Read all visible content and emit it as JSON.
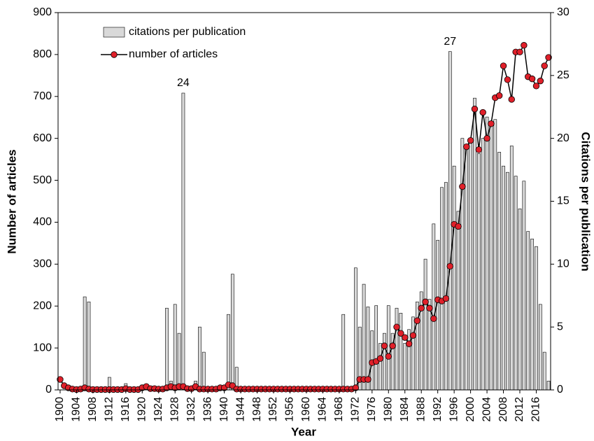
{
  "chart_data": {
    "type": "combo",
    "x_label": "Year",
    "y_label": "Number of articles",
    "y2_label": "Citations per publication",
    "x": [
      1900,
      1901,
      1902,
      1903,
      1904,
      1905,
      1906,
      1907,
      1908,
      1909,
      1910,
      1911,
      1912,
      1913,
      1914,
      1915,
      1916,
      1917,
      1918,
      1919,
      1920,
      1921,
      1922,
      1923,
      1924,
      1925,
      1926,
      1927,
      1928,
      1929,
      1930,
      1931,
      1932,
      1933,
      1934,
      1935,
      1936,
      1937,
      1938,
      1939,
      1940,
      1941,
      1942,
      1943,
      1944,
      1945,
      1946,
      1947,
      1948,
      1949,
      1950,
      1951,
      1952,
      1953,
      1954,
      1955,
      1956,
      1957,
      1958,
      1959,
      1960,
      1961,
      1962,
      1963,
      1964,
      1965,
      1966,
      1967,
      1968,
      1969,
      1970,
      1971,
      1972,
      1973,
      1974,
      1975,
      1976,
      1977,
      1978,
      1979,
      1980,
      1981,
      1982,
      1983,
      1984,
      1985,
      1986,
      1987,
      1988,
      1989,
      1990,
      1991,
      1992,
      1993,
      1994,
      1995,
      1996,
      1997,
      1998,
      1999,
      2000,
      2001,
      2002,
      2003,
      2004,
      2005,
      2006,
      2007,
      2008,
      2009,
      2010,
      2011,
      2012,
      2013,
      2014,
      2015,
      2016,
      2017,
      2018,
      2019
    ],
    "xlim": [
      1899.5,
      2019.5
    ],
    "xticks": [
      1900,
      1904,
      1908,
      1912,
      1916,
      1920,
      1924,
      1928,
      1932,
      1936,
      1940,
      1944,
      1948,
      1952,
      1956,
      1960,
      1964,
      1968,
      1972,
      1976,
      1980,
      1984,
      1988,
      1992,
      1996,
      2000,
      2004,
      2008,
      2012,
      2016
    ],
    "ylim": [
      0,
      900
    ],
    "yticks": [
      0,
      100,
      200,
      300,
      400,
      500,
      600,
      700,
      800,
      900
    ],
    "y2lim": [
      0,
      30
    ],
    "y2ticks": [
      0,
      5,
      10,
      15,
      20,
      25,
      30
    ],
    "legend": "upper left",
    "series": [
      {
        "name": "citations per publication",
        "type": "bar",
        "axis": "y2",
        "color": "#d9d9d9",
        "values": [
          0,
          0,
          0,
          0,
          0,
          0,
          7.4,
          7.0,
          0,
          0,
          0,
          0,
          1.0,
          0,
          0,
          0,
          0.5,
          0,
          0,
          0,
          0.4,
          0,
          0,
          0,
          0,
          0,
          6.5,
          0.7,
          6.8,
          4.5,
          23.6,
          0,
          0,
          0.7,
          5.0,
          3.0,
          0,
          0,
          0,
          0,
          0,
          6.0,
          9.2,
          1.8,
          0,
          0,
          0,
          0,
          0,
          0,
          0,
          0,
          0,
          0,
          0,
          0,
          0,
          0,
          0,
          0,
          0,
          0,
          0,
          0,
          0,
          0,
          0,
          0,
          0,
          6.0,
          0,
          0,
          9.7,
          5.0,
          8.4,
          6.6,
          4.7,
          6.7,
          3.7,
          4.5,
          6.7,
          4.5,
          6.5,
          6.1,
          3.7,
          4.8,
          5.8,
          7.0,
          7.8,
          10.4,
          7.2,
          13.2,
          11.9,
          16.1,
          16.5,
          26.9,
          17.8,
          14.2,
          20.0,
          19.3,
          20.0,
          23.2,
          18.8,
          20.0,
          21.7,
          21.3,
          21.5,
          18.9,
          17.8,
          17.3,
          19.4,
          17.0,
          14.4,
          16.6,
          12.6,
          12.0,
          11.4,
          6.8,
          3.0,
          0.7
        ],
        "value_labels": [
          null,
          null,
          null,
          null,
          null,
          null,
          null,
          null,
          null,
          null,
          null,
          null,
          null,
          null,
          null,
          null,
          null,
          null,
          null,
          null,
          null,
          null,
          null,
          null,
          null,
          null,
          null,
          null,
          null,
          null,
          "24",
          null,
          null,
          null,
          null,
          null,
          null,
          null,
          null,
          null,
          null,
          null,
          null,
          null,
          null,
          null,
          null,
          null,
          null,
          null,
          null,
          null,
          null,
          null,
          null,
          null,
          null,
          null,
          null,
          null,
          null,
          null,
          null,
          null,
          null,
          null,
          null,
          null,
          null,
          null,
          null,
          null,
          null,
          null,
          null,
          null,
          null,
          null,
          null,
          null,
          null,
          null,
          null,
          null,
          null,
          null,
          null,
          null,
          null,
          null,
          null,
          null,
          null,
          null,
          null,
          "27",
          null,
          null,
          null,
          null,
          null,
          null,
          null,
          null,
          null,
          null,
          null,
          null,
          null,
          null,
          null,
          null,
          null,
          null,
          null,
          null,
          null,
          null,
          null,
          null
        ]
      },
      {
        "name": "number of articles",
        "type": "line",
        "axis": "y",
        "color": "#000000",
        "marker_color": "#e0202a",
        "values": [
          25,
          10,
          5,
          2,
          1,
          2,
          5,
          2,
          1,
          1,
          1,
          1,
          1,
          1,
          1,
          1,
          3,
          1,
          1,
          1,
          5,
          8,
          3,
          3,
          2,
          2,
          5,
          8,
          5,
          8,
          8,
          3,
          3,
          8,
          2,
          2,
          2,
          2,
          2,
          5,
          5,
          12,
          10,
          2,
          2,
          2,
          2,
          2,
          2,
          2,
          2,
          2,
          2,
          2,
          2,
          2,
          2,
          2,
          2,
          2,
          2,
          2,
          2,
          2,
          2,
          2,
          2,
          2,
          2,
          2,
          2,
          2,
          5,
          25,
          25,
          25,
          65,
          68,
          75,
          105,
          80,
          105,
          150,
          135,
          125,
          110,
          130,
          165,
          195,
          210,
          195,
          170,
          215,
          212,
          218,
          295,
          395,
          390,
          485,
          580,
          595,
          670,
          573,
          662,
          600,
          635,
          697,
          702,
          773,
          740,
          693,
          806,
          806,
          822,
          747,
          742,
          725,
          737,
          773,
          793
        ]
      }
    ]
  }
}
